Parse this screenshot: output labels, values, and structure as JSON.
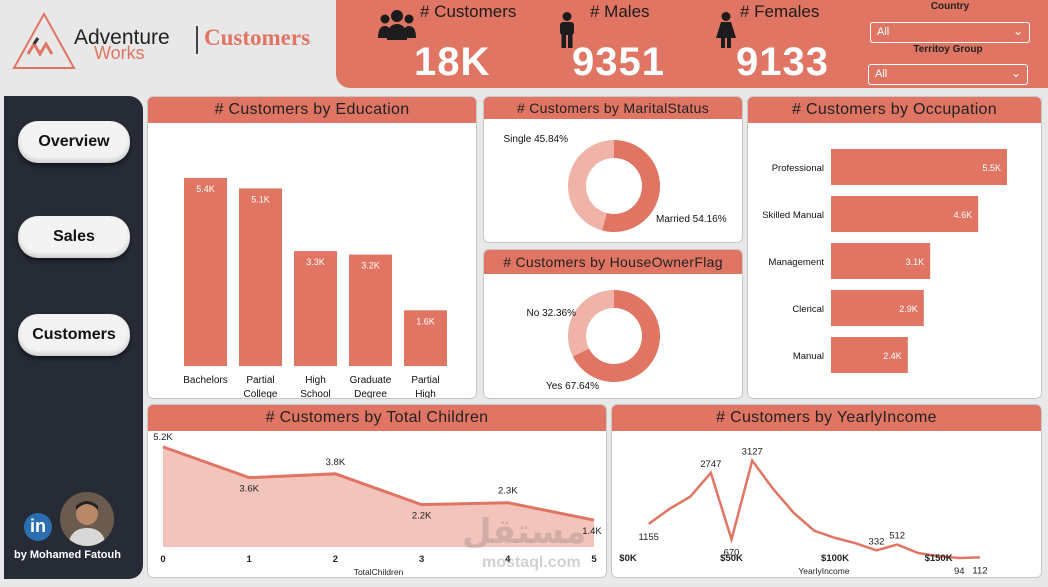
{
  "header": {
    "brand_line1": "Adventure",
    "brand_line2": "Works",
    "page_title": "Customers"
  },
  "kpis": [
    {
      "label": "# Customers",
      "value": "18K",
      "icon": "people-icon"
    },
    {
      "label": "# Males",
      "value": "9351",
      "icon": "male-icon"
    },
    {
      "label": "# Females",
      "value": "9133",
      "icon": "female-icon"
    }
  ],
  "filters": {
    "country": {
      "label": "Country",
      "value": "All"
    },
    "territory": {
      "label": "Territoy Group",
      "value": "All"
    }
  },
  "nav": {
    "overview": "Overview",
    "sales": "Sales",
    "customers": "Customers"
  },
  "credit": {
    "author": "by Mohamed Fatouh",
    "linkedin": "in"
  },
  "watermark": {
    "arabic": "مستقل",
    "latin": "mostaql.com"
  },
  "colors": {
    "accent": "#e07563",
    "accent_light": "#efb3a8",
    "sidebar": "#262b36"
  },
  "chart_data": [
    {
      "type": "bar",
      "title": "# Customers by Education",
      "categories": [
        "Bachelors",
        "Partial College",
        "High School",
        "Graduate Degree",
        "Partial High School"
      ],
      "category_lines": [
        [
          "Bachelors"
        ],
        [
          "Partial",
          "College"
        ],
        [
          "High",
          "School"
        ],
        [
          "Graduate",
          "Degree"
        ],
        [
          "Partial",
          "High",
          "School"
        ]
      ],
      "values": [
        5400,
        5100,
        3300,
        3200,
        1600
      ],
      "data_labels": [
        "5.4K",
        "5.1K",
        "3.3K",
        "3.2K",
        "1.6K"
      ],
      "ylim": [
        0,
        5400
      ]
    },
    {
      "type": "pie",
      "title": "# Customers by MaritalStatus",
      "labels": [
        "Married",
        "Single"
      ],
      "values": [
        54.16,
        45.84
      ],
      "data_labels": [
        "Married 54.16%",
        "Single 45.84%"
      ]
    },
    {
      "type": "pie",
      "title": "# Customers by HouseOwnerFlag",
      "labels": [
        "Yes",
        "No"
      ],
      "values": [
        67.64,
        32.36
      ],
      "data_labels": [
        "Yes 67.64%",
        "No 32.36%"
      ]
    },
    {
      "type": "bar",
      "orientation": "horizontal",
      "title": "# Customers by Occupation",
      "categories": [
        "Professional",
        "Skilled Manual",
        "Management",
        "Clerical",
        "Manual"
      ],
      "values": [
        5500,
        4600,
        3100,
        2900,
        2400
      ],
      "data_labels": [
        "5.5K",
        "4.6K",
        "3.1K",
        "2.9K",
        "2.4K"
      ],
      "xlim": [
        0,
        5500
      ]
    },
    {
      "type": "area",
      "title": "# Customers by Total Children",
      "xlabel": "TotalChildren",
      "x": [
        0,
        1,
        2,
        3,
        4,
        5
      ],
      "values": [
        5200,
        3600,
        3800,
        2200,
        2300,
        1400
      ],
      "data_labels": [
        "5.2K",
        "3.6K",
        "3.8K",
        "2.2K",
        "2.3K",
        "1.4K"
      ],
      "ylim": [
        0,
        5400
      ]
    },
    {
      "type": "line",
      "title": "# Customers by YearlyIncome",
      "xlabel": "YearlyIncome",
      "x": [
        10000,
        20000,
        30000,
        40000,
        50000,
        60000,
        70000,
        80000,
        90000,
        100000,
        110000,
        120000,
        130000,
        140000,
        150000,
        160000,
        170000
      ],
      "values": [
        1155,
        1620,
        2000,
        2747,
        670,
        3127,
        2250,
        1500,
        940,
        720,
        550,
        332,
        512,
        250,
        150,
        94,
        112
      ],
      "data_labels": {
        "10000": "1155",
        "40000": "2747",
        "50000": "670",
        "60000": "3127",
        "120000": "332",
        "130000": "512",
        "160000": "94",
        "170000": "112"
      },
      "xticks": [
        "$0K",
        "$50K",
        "$100K",
        "$150K"
      ],
      "xlim": [
        0,
        170000
      ],
      "ylim": [
        0,
        3300
      ]
    }
  ]
}
